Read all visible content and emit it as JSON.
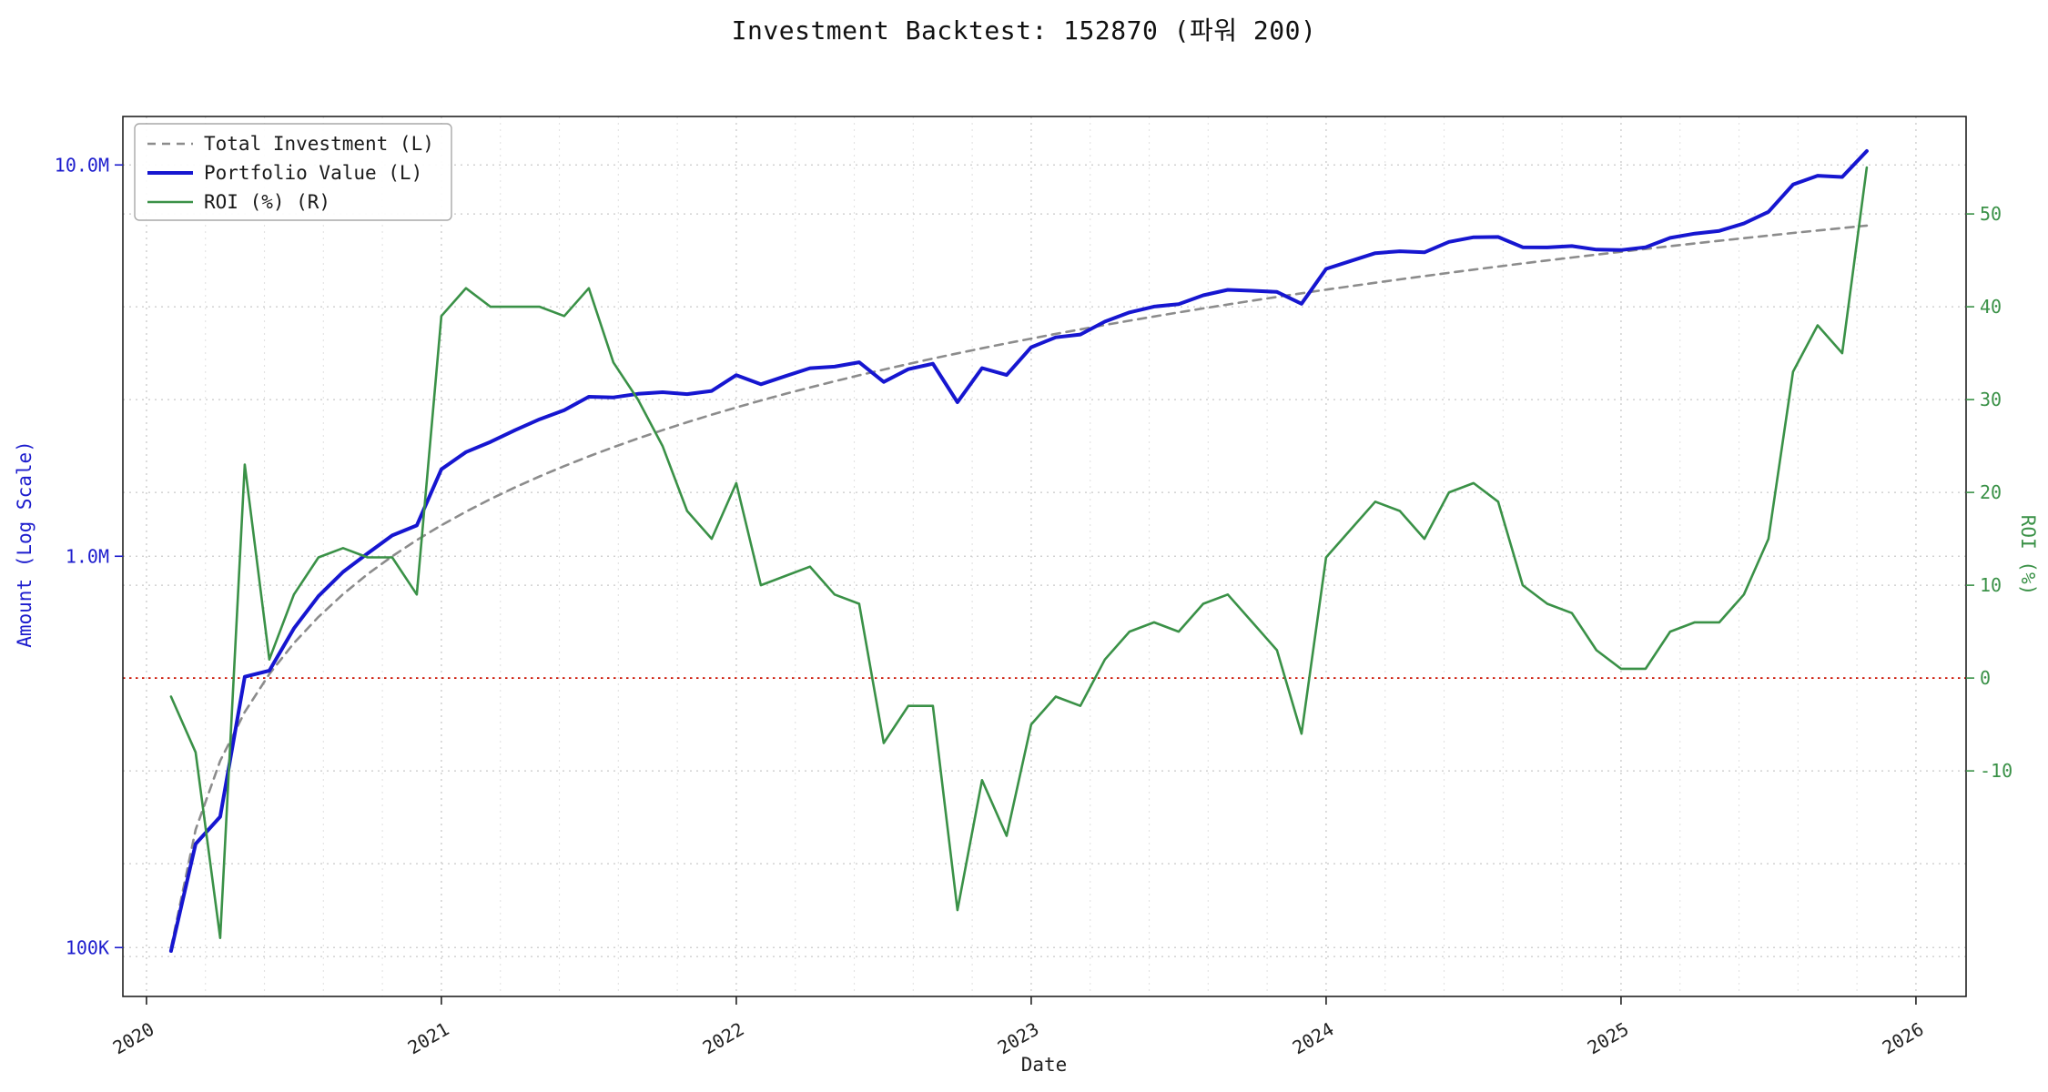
{
  "title": "Investment Backtest: 152870 (파워 200)",
  "axes": {
    "left_label": "Amount (Log Scale)",
    "right_label": "ROI (%)",
    "x_label": "Date"
  },
  "legend": [
    {
      "label": "Total Investment (L)",
      "color": "#8c8c8c",
      "dash": "9 7",
      "width": 2.6
    },
    {
      "label": "Portfolio Value (L)",
      "color": "#1616d0",
      "dash": "",
      "width": 4
    },
    {
      "label": "ROI (%) (R)",
      "color": "#3a9147",
      "dash": "",
      "width": 2.6
    }
  ],
  "chart_data": {
    "type": "line",
    "title": "Investment Backtest: 152870 (파워 200)",
    "xlabel": "Date",
    "ylabel_left": "Amount (Log Scale)",
    "ylabel_right": "ROI (%)",
    "legend_position": "upper left",
    "grid": true,
    "x_dates": [
      "2020-02",
      "2020-03",
      "2020-04",
      "2020-05",
      "2020-06",
      "2020-07",
      "2020-08",
      "2020-09",
      "2020-10",
      "2020-11",
      "2020-12",
      "2021-01",
      "2021-02",
      "2021-03",
      "2021-04",
      "2021-05",
      "2021-06",
      "2021-07",
      "2021-08",
      "2021-09",
      "2021-10",
      "2021-11",
      "2021-12",
      "2022-01",
      "2022-02",
      "2022-03",
      "2022-04",
      "2022-05",
      "2022-06",
      "2022-07",
      "2022-08",
      "2022-09",
      "2022-10",
      "2022-11",
      "2022-12",
      "2023-01",
      "2023-02",
      "2023-03",
      "2023-04",
      "2023-05",
      "2023-06",
      "2023-07",
      "2023-08",
      "2023-09",
      "2023-10",
      "2023-11",
      "2023-12",
      "2024-01",
      "2024-02",
      "2024-03",
      "2024-04",
      "2024-05",
      "2024-06",
      "2024-07",
      "2024-08",
      "2024-09",
      "2024-10",
      "2024-11",
      "2024-12",
      "2025-01",
      "2025-02",
      "2025-03",
      "2025-04",
      "2025-05",
      "2025-06",
      "2025-07",
      "2025-08",
      "2025-09",
      "2025-10",
      "2025-11"
    ],
    "series": [
      {
        "name": "Total Investment (L)",
        "axis": "left",
        "color": "#8c8c8c",
        "dash": "9 7",
        "width": 2.6,
        "values": [
          100000,
          200000,
          300000,
          400000,
          500000,
          600000,
          700000,
          800000,
          900000,
          1000000,
          1100000,
          1200000,
          1300000,
          1400000,
          1500000,
          1600000,
          1700000,
          1800000,
          1900000,
          2000000,
          2100000,
          2200000,
          2300000,
          2400000,
          2500000,
          2600000,
          2700000,
          2800000,
          2900000,
          3000000,
          3100000,
          3200000,
          3300000,
          3400000,
          3500000,
          3600000,
          3700000,
          3800000,
          3900000,
          4000000,
          4100000,
          4200000,
          4300000,
          4400000,
          4500000,
          4600000,
          4700000,
          4800000,
          4900000,
          5000000,
          5100000,
          5200000,
          5300000,
          5400000,
          5500000,
          5600000,
          5700000,
          5800000,
          5900000,
          6000000,
          6100000,
          6200000,
          6300000,
          6400000,
          6500000,
          6600000,
          6700000,
          6800000,
          6900000,
          7000000
        ]
      },
      {
        "name": "Portfolio Value (L)",
        "axis": "left",
        "color": "#1616d0",
        "dash": "",
        "width": 4,
        "values": [
          98000,
          184000,
          216000,
          492000,
          510000,
          654000,
          791000,
          912000,
          1017000,
          1130000,
          1199000,
          1668000,
          1846000,
          1960000,
          2100000,
          2240000,
          2363000,
          2556000,
          2546000,
          2600000,
          2625000,
          2596000,
          2645000,
          2904000,
          2750000,
          2886000,
          3024000,
          3052000,
          3132000,
          2790000,
          3007000,
          3104000,
          2475000,
          3026000,
          2905000,
          3420000,
          3626000,
          3686000,
          3978000,
          4200000,
          4346000,
          4410000,
          4644000,
          4796000,
          4770000,
          4738000,
          4418000,
          5424000,
          5684000,
          5950000,
          6018000,
          5980000,
          6360000,
          6534000,
          6545000,
          6160000,
          6156000,
          6206000,
          6077000,
          6060000,
          6161000,
          6510000,
          6678000,
          6784000,
          7085000,
          7590000,
          8911000,
          9384000,
          9315000,
          10850000
        ]
      },
      {
        "name": "ROI (%) (R)",
        "axis": "right",
        "color": "#3a9147",
        "dash": "",
        "width": 2.6,
        "values": [
          -2,
          -8,
          -28,
          23,
          2,
          9,
          13,
          14,
          13,
          13,
          9,
          39,
          42,
          40,
          40,
          40,
          39,
          42,
          34,
          30,
          25,
          18,
          15,
          21,
          10,
          11,
          12,
          9,
          8,
          -7,
          -3,
          -3,
          -25,
          -11,
          -17,
          -5,
          -2,
          -3,
          2,
          5,
          6,
          5,
          8,
          9,
          6,
          3,
          -6,
          13,
          16,
          19,
          18,
          15,
          20,
          21,
          19,
          10,
          8,
          7,
          3,
          1,
          1,
          5,
          6,
          6,
          9,
          15,
          33,
          38,
          35,
          55
        ]
      }
    ],
    "left_ticks": [
      {
        "value": 100000,
        "label": "100K"
      },
      {
        "value": 1000000,
        "label": "1.0M"
      },
      {
        "value": 10000000,
        "label": "10.0M"
      }
    ],
    "right_ticks": [
      {
        "value": -10,
        "label": "-10"
      },
      {
        "value": 0,
        "label": "0"
      },
      {
        "value": 10,
        "label": "10"
      },
      {
        "value": 20,
        "label": "20"
      },
      {
        "value": 30,
        "label": "30"
      },
      {
        "value": 40,
        "label": "40"
      },
      {
        "value": 50,
        "label": "50"
      }
    ],
    "right_grid_values": [
      -30,
      -20,
      -10,
      10,
      20,
      30,
      40,
      50
    ],
    "x_ticks": [
      {
        "value": 2020,
        "label": "2020"
      },
      {
        "value": 2021,
        "label": "2021"
      },
      {
        "value": 2022,
        "label": "2022"
      },
      {
        "value": 2023,
        "label": "2023"
      },
      {
        "value": 2024,
        "label": "2024"
      },
      {
        "value": 2025,
        "label": "2025"
      },
      {
        "value": 2026,
        "label": "2026"
      }
    ],
    "x_minor_step": 0.2,
    "x_range": [
      2019.92,
      2026.17
    ],
    "left_range": [
      75000,
      13300000
    ],
    "right_range": [
      -34.3,
      60.5
    ],
    "zero_line": {
      "axis": "right",
      "value": 0,
      "color": "#cc1100"
    },
    "colors": {
      "portfolio": "#1616d0",
      "total_investment": "#8c8c8c",
      "roi": "#3a9147",
      "zero_line": "#cc1100",
      "left_axis_text": "#1c1ccd",
      "right_axis_text": "#3a9147",
      "x_axis_text": "#222222",
      "grid_major": "#c9c9c9",
      "grid_minor": "#e2e2e2",
      "spine": "#222222",
      "title": "#111111"
    }
  }
}
